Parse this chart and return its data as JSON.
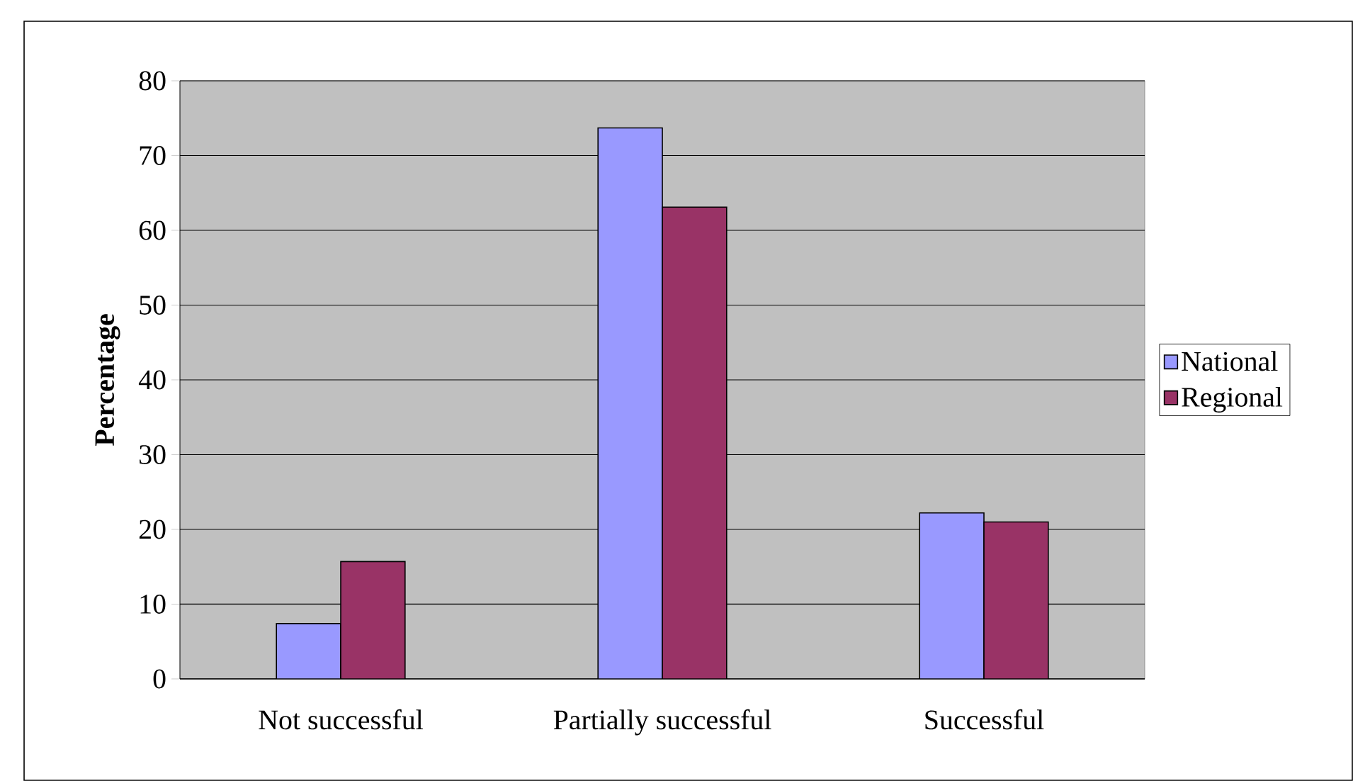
{
  "chart_data": {
    "type": "bar",
    "ylabel": "Percentage",
    "categories": [
      "Not successful",
      "Partially successful",
      "Successful"
    ],
    "series": [
      {
        "name": "National",
        "color": "#9999ff",
        "values": [
          7.4,
          73.7,
          22.2
        ]
      },
      {
        "name": "Regional",
        "color": "#993366",
        "values": [
          15.7,
          63.1,
          21.0
        ]
      }
    ],
    "ylim": [
      0,
      80
    ],
    "yticks": [
      0,
      10,
      20,
      30,
      40,
      50,
      60,
      70,
      80
    ],
    "grid": "y",
    "legend": "right"
  }
}
